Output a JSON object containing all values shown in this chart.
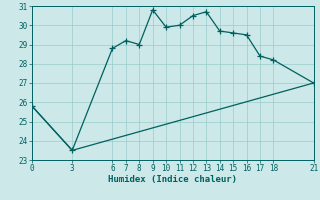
{
  "xlabel": "Humidex (Indice chaleur)",
  "bg_color": "#cce8e8",
  "line_color": "#006060",
  "grid_color": "#99cccc",
  "series1_x": [
    0,
    3,
    6,
    7,
    8,
    9,
    10,
    11,
    12,
    13,
    14,
    15,
    16,
    17,
    18,
    21
  ],
  "series1_y": [
    25.8,
    23.5,
    28.8,
    29.2,
    29.0,
    30.8,
    29.9,
    30.0,
    30.5,
    30.7,
    29.7,
    29.6,
    29.5,
    28.4,
    28.2,
    27.0
  ],
  "series2_x": [
    0,
    3,
    21
  ],
  "series2_y": [
    25.8,
    23.5,
    27.0
  ],
  "xlim": [
    0,
    21
  ],
  "ylim": [
    23,
    31
  ],
  "xticks": [
    0,
    3,
    6,
    7,
    8,
    9,
    10,
    11,
    12,
    13,
    14,
    15,
    16,
    17,
    18,
    21
  ],
  "yticks": [
    23,
    24,
    25,
    26,
    27,
    28,
    29,
    30,
    31
  ],
  "marker": "+",
  "markersize": 4,
  "linewidth": 0.9,
  "tick_fontsize": 5.5,
  "label_fontsize": 6.5
}
